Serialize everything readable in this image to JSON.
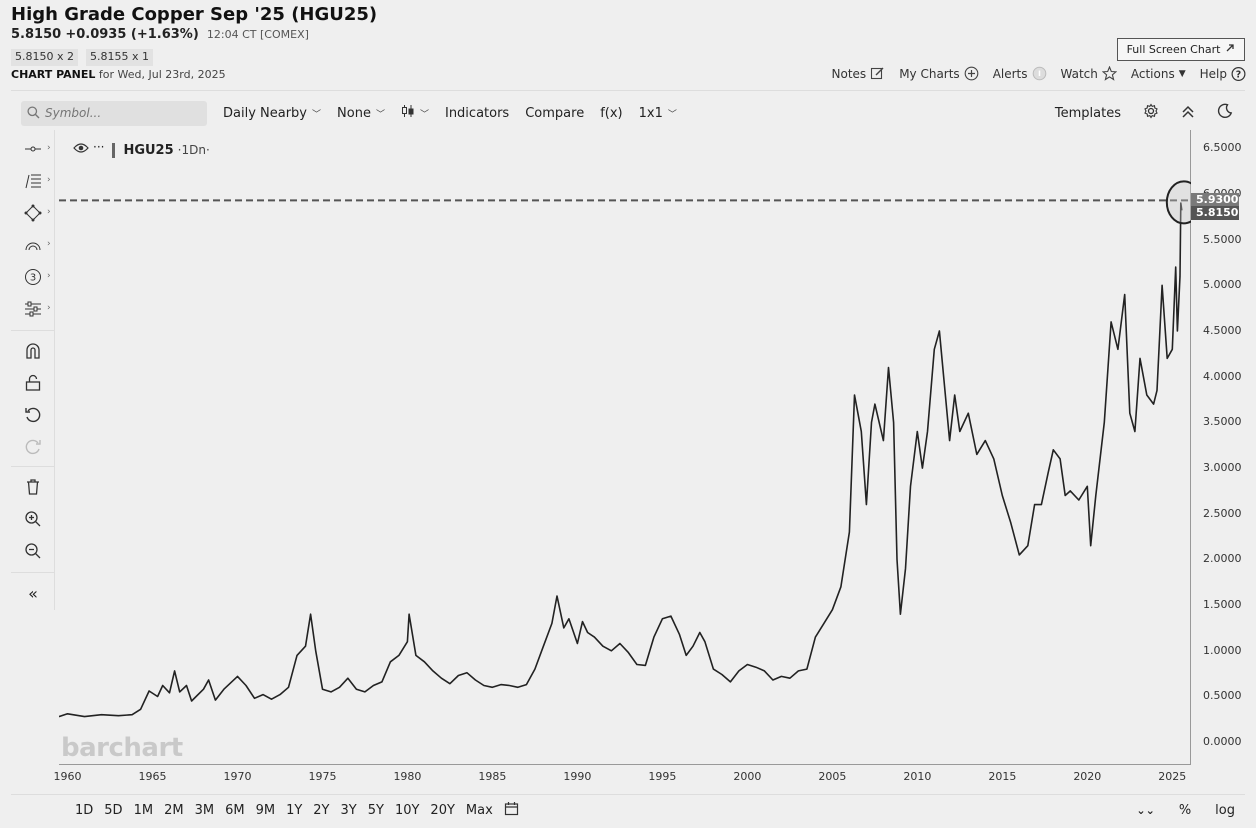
{
  "header": {
    "title": "High Grade Copper Sep '25 (HGU25)",
    "last": "5.8150",
    "change": "+0.0935 (+1.63%)",
    "time": "12:04 CT [COMEX]",
    "bid": "5.8150 x 2",
    "ask": "5.8155 x 1",
    "panel_label": "CHART PANEL",
    "panel_date": "for Wed, Jul 23rd, 2025",
    "fullscreen_label": "Full Screen Chart"
  },
  "topnav": {
    "notes": "Notes",
    "my_charts": "My Charts",
    "alerts": "Alerts",
    "watch": "Watch",
    "actions": "Actions",
    "help": "Help"
  },
  "toolbar": {
    "search_placeholder": "Symbol...",
    "aggregation": "Daily Nearby",
    "study": "None",
    "indicators": "Indicators",
    "compare": "Compare",
    "fx": "f(x)",
    "layout": "1x1",
    "templates": "Templates"
  },
  "legend": {
    "symbol": "HGU25",
    "interval": "·1Dn·"
  },
  "watermark": "barchart",
  "price_tags": {
    "high": "5.9300",
    "last": "5.8150",
    "colors": {
      "high": "#7a7a7a",
      "last": "#555555"
    }
  },
  "ranges": [
    "1D",
    "5D",
    "1M",
    "2M",
    "3M",
    "6M",
    "9M",
    "1Y",
    "2Y",
    "3Y",
    "5Y",
    "10Y",
    "20Y",
    "Max"
  ],
  "bottom_right": {
    "percent": "%",
    "log": "log"
  },
  "chart_data": {
    "type": "line",
    "series": [
      {
        "values": [
          [
            1959.5,
            0.28
          ],
          [
            1960.0,
            0.31
          ],
          [
            1961.0,
            0.28
          ],
          [
            1962.0,
            0.3
          ],
          [
            1963.0,
            0.29
          ],
          [
            1963.8,
            0.3
          ],
          [
            1964.3,
            0.36
          ],
          [
            1964.8,
            0.56
          ],
          [
            1965.3,
            0.5
          ],
          [
            1965.6,
            0.62
          ],
          [
            1966.0,
            0.54
          ],
          [
            1966.3,
            0.78
          ],
          [
            1966.6,
            0.55
          ],
          [
            1967.0,
            0.62
          ],
          [
            1967.3,
            0.45
          ],
          [
            1968.0,
            0.58
          ],
          [
            1968.3,
            0.68
          ],
          [
            1968.7,
            0.46
          ],
          [
            1969.2,
            0.58
          ],
          [
            1970.0,
            0.72
          ],
          [
            1970.5,
            0.62
          ],
          [
            1971.0,
            0.48
          ],
          [
            1971.5,
            0.52
          ],
          [
            1972.0,
            0.47
          ],
          [
            1972.5,
            0.52
          ],
          [
            1973.0,
            0.6
          ],
          [
            1973.5,
            0.95
          ],
          [
            1974.0,
            1.05
          ],
          [
            1974.3,
            1.4
          ],
          [
            1974.6,
            1.0
          ],
          [
            1975.0,
            0.58
          ],
          [
            1975.5,
            0.55
          ],
          [
            1976.0,
            0.6
          ],
          [
            1976.5,
            0.7
          ],
          [
            1977.0,
            0.58
          ],
          [
            1977.5,
            0.55
          ],
          [
            1978.0,
            0.62
          ],
          [
            1978.5,
            0.66
          ],
          [
            1979.0,
            0.88
          ],
          [
            1979.5,
            0.95
          ],
          [
            1980.0,
            1.1
          ],
          [
            1980.1,
            1.4
          ],
          [
            1980.5,
            0.95
          ],
          [
            1981.0,
            0.88
          ],
          [
            1981.5,
            0.78
          ],
          [
            1982.0,
            0.7
          ],
          [
            1982.5,
            0.64
          ],
          [
            1983.0,
            0.73
          ],
          [
            1983.5,
            0.76
          ],
          [
            1984.0,
            0.68
          ],
          [
            1984.5,
            0.62
          ],
          [
            1985.0,
            0.6
          ],
          [
            1985.5,
            0.63
          ],
          [
            1986.0,
            0.62
          ],
          [
            1986.5,
            0.6
          ],
          [
            1987.0,
            0.63
          ],
          [
            1987.5,
            0.8
          ],
          [
            1988.0,
            1.05
          ],
          [
            1988.5,
            1.3
          ],
          [
            1988.8,
            1.6
          ],
          [
            1989.2,
            1.25
          ],
          [
            1989.5,
            1.35
          ],
          [
            1990.0,
            1.08
          ],
          [
            1990.3,
            1.32
          ],
          [
            1990.6,
            1.2
          ],
          [
            1991.0,
            1.15
          ],
          [
            1991.5,
            1.05
          ],
          [
            1992.0,
            1.0
          ],
          [
            1992.5,
            1.08
          ],
          [
            1993.0,
            0.98
          ],
          [
            1993.5,
            0.85
          ],
          [
            1994.0,
            0.84
          ],
          [
            1994.5,
            1.15
          ],
          [
            1995.0,
            1.35
          ],
          [
            1995.5,
            1.38
          ],
          [
            1996.0,
            1.18
          ],
          [
            1996.4,
            0.95
          ],
          [
            1996.8,
            1.05
          ],
          [
            1997.2,
            1.2
          ],
          [
            1997.5,
            1.1
          ],
          [
            1998.0,
            0.8
          ],
          [
            1998.5,
            0.74
          ],
          [
            1999.0,
            0.66
          ],
          [
            1999.5,
            0.78
          ],
          [
            2000.0,
            0.85
          ],
          [
            2000.5,
            0.82
          ],
          [
            2001.0,
            0.78
          ],
          [
            2001.5,
            0.68
          ],
          [
            2002.0,
            0.72
          ],
          [
            2002.5,
            0.7
          ],
          [
            2003.0,
            0.78
          ],
          [
            2003.5,
            0.8
          ],
          [
            2004.0,
            1.15
          ],
          [
            2004.5,
            1.3
          ],
          [
            2005.0,
            1.45
          ],
          [
            2005.5,
            1.7
          ],
          [
            2006.0,
            2.3
          ],
          [
            2006.3,
            3.8
          ],
          [
            2006.5,
            3.6
          ],
          [
            2006.7,
            3.4
          ],
          [
            2007.0,
            2.6
          ],
          [
            2007.3,
            3.5
          ],
          [
            2007.5,
            3.7
          ],
          [
            2008.0,
            3.3
          ],
          [
            2008.3,
            4.1
          ],
          [
            2008.6,
            3.5
          ],
          [
            2008.8,
            2.0
          ],
          [
            2009.0,
            1.4
          ],
          [
            2009.3,
            1.9
          ],
          [
            2009.6,
            2.8
          ],
          [
            2010.0,
            3.4
          ],
          [
            2010.3,
            3.0
          ],
          [
            2010.6,
            3.4
          ],
          [
            2011.0,
            4.3
          ],
          [
            2011.3,
            4.5
          ],
          [
            2011.6,
            3.9
          ],
          [
            2011.9,
            3.3
          ],
          [
            2012.2,
            3.8
          ],
          [
            2012.5,
            3.4
          ],
          [
            2013.0,
            3.6
          ],
          [
            2013.5,
            3.15
          ],
          [
            2014.0,
            3.3
          ],
          [
            2014.5,
            3.1
          ],
          [
            2015.0,
            2.7
          ],
          [
            2015.5,
            2.4
          ],
          [
            2016.0,
            2.05
          ],
          [
            2016.5,
            2.15
          ],
          [
            2016.9,
            2.6
          ],
          [
            2017.3,
            2.6
          ],
          [
            2017.7,
            2.95
          ],
          [
            2018.0,
            3.2
          ],
          [
            2018.4,
            3.1
          ],
          [
            2018.7,
            2.7
          ],
          [
            2019.0,
            2.75
          ],
          [
            2019.5,
            2.65
          ],
          [
            2020.0,
            2.8
          ],
          [
            2020.2,
            2.15
          ],
          [
            2020.5,
            2.7
          ],
          [
            2021.0,
            3.5
          ],
          [
            2021.4,
            4.6
          ],
          [
            2021.8,
            4.3
          ],
          [
            2022.2,
            4.9
          ],
          [
            2022.5,
            3.6
          ],
          [
            2022.8,
            3.4
          ],
          [
            2023.1,
            4.2
          ],
          [
            2023.5,
            3.8
          ],
          [
            2023.9,
            3.7
          ],
          [
            2024.1,
            3.85
          ],
          [
            2024.4,
            5.0
          ],
          [
            2024.7,
            4.2
          ],
          [
            2025.0,
            4.3
          ],
          [
            2025.2,
            5.2
          ],
          [
            2025.3,
            4.5
          ],
          [
            2025.45,
            5.1
          ],
          [
            2025.5,
            5.9
          ],
          [
            2025.56,
            5.82
          ]
        ]
      }
    ],
    "xlim": [
      1959.5,
      2026.1
    ],
    "ylim": [
      -0.25,
      6.7
    ],
    "x_ticks": [
      "1960",
      "1965",
      "1970",
      "1975",
      "1980",
      "1985",
      "1990",
      "1995",
      "2000",
      "2005",
      "2010",
      "2015",
      "2020",
      "2025"
    ],
    "y_ticks": [
      "6.5000",
      "6.0000",
      "5.5000",
      "5.0000",
      "4.5000",
      "4.0000",
      "3.5000",
      "3.0000",
      "2.5000",
      "2.0000",
      "1.5000",
      "1.0000",
      "0.5000",
      "0.0000"
    ],
    "reference_line": 5.93,
    "grid": false,
    "line_color": "#222222"
  }
}
